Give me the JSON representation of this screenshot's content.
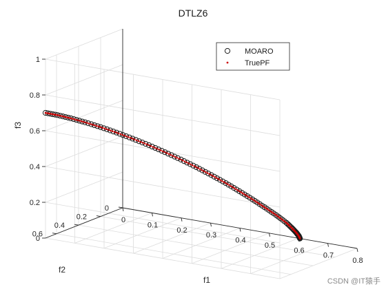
{
  "chart_data": {
    "type": "scatter",
    "title": "DTLZ6",
    "xlabel": "f1",
    "ylabel": "f2",
    "zlabel": "f3",
    "xlim": [
      0,
      0.8
    ],
    "ylim": [
      0,
      0.7
    ],
    "zlim": [
      0,
      1
    ],
    "xticks": [
      "0",
      "0.1",
      "0.2",
      "0.3",
      "0.4",
      "0.5",
      "0.6",
      "0.7",
      "0.8"
    ],
    "yticks": [
      "0",
      "0.2",
      "0.4",
      "0.6"
    ],
    "zticks": [
      "0",
      "0.2",
      "0.4",
      "0.6",
      "0.8",
      "1"
    ],
    "grid": true,
    "legend_position": "top-right",
    "colors": {
      "moaro": "#1a1a1a",
      "truepf": "#cc0000"
    },
    "curve_param_deg": [
      0,
      90
    ],
    "series": [
      {
        "name": "MOARO",
        "marker": "open-circle",
        "x": [
          0.0,
          0.04,
          0.082,
          0.125,
          0.17,
          0.215,
          0.258,
          0.3,
          0.34,
          0.378,
          0.413,
          0.445,
          0.475,
          0.501,
          0.525,
          0.545,
          0.563,
          0.578,
          0.59,
          0.598,
          0.603,
          0.605
        ],
        "y": [
          0.7,
          0.697,
          0.688,
          0.673,
          0.652,
          0.627,
          0.596,
          0.56,
          0.52,
          0.476,
          0.429,
          0.379,
          0.327,
          0.273,
          0.218,
          0.162,
          0.105,
          0.05,
          0.03,
          0.015,
          0.005,
          0.0
        ],
        "z": [
          0.7,
          0.698,
          0.69,
          0.676,
          0.657,
          0.633,
          0.604,
          0.571,
          0.533,
          0.492,
          0.448,
          0.401,
          0.352,
          0.301,
          0.249,
          0.197,
          0.145,
          0.092,
          0.06,
          0.035,
          0.015,
          0.0
        ]
      },
      {
        "name": "TruePF",
        "marker": "dot"
      }
    ]
  },
  "watermark": "CSDN @IT猿手"
}
